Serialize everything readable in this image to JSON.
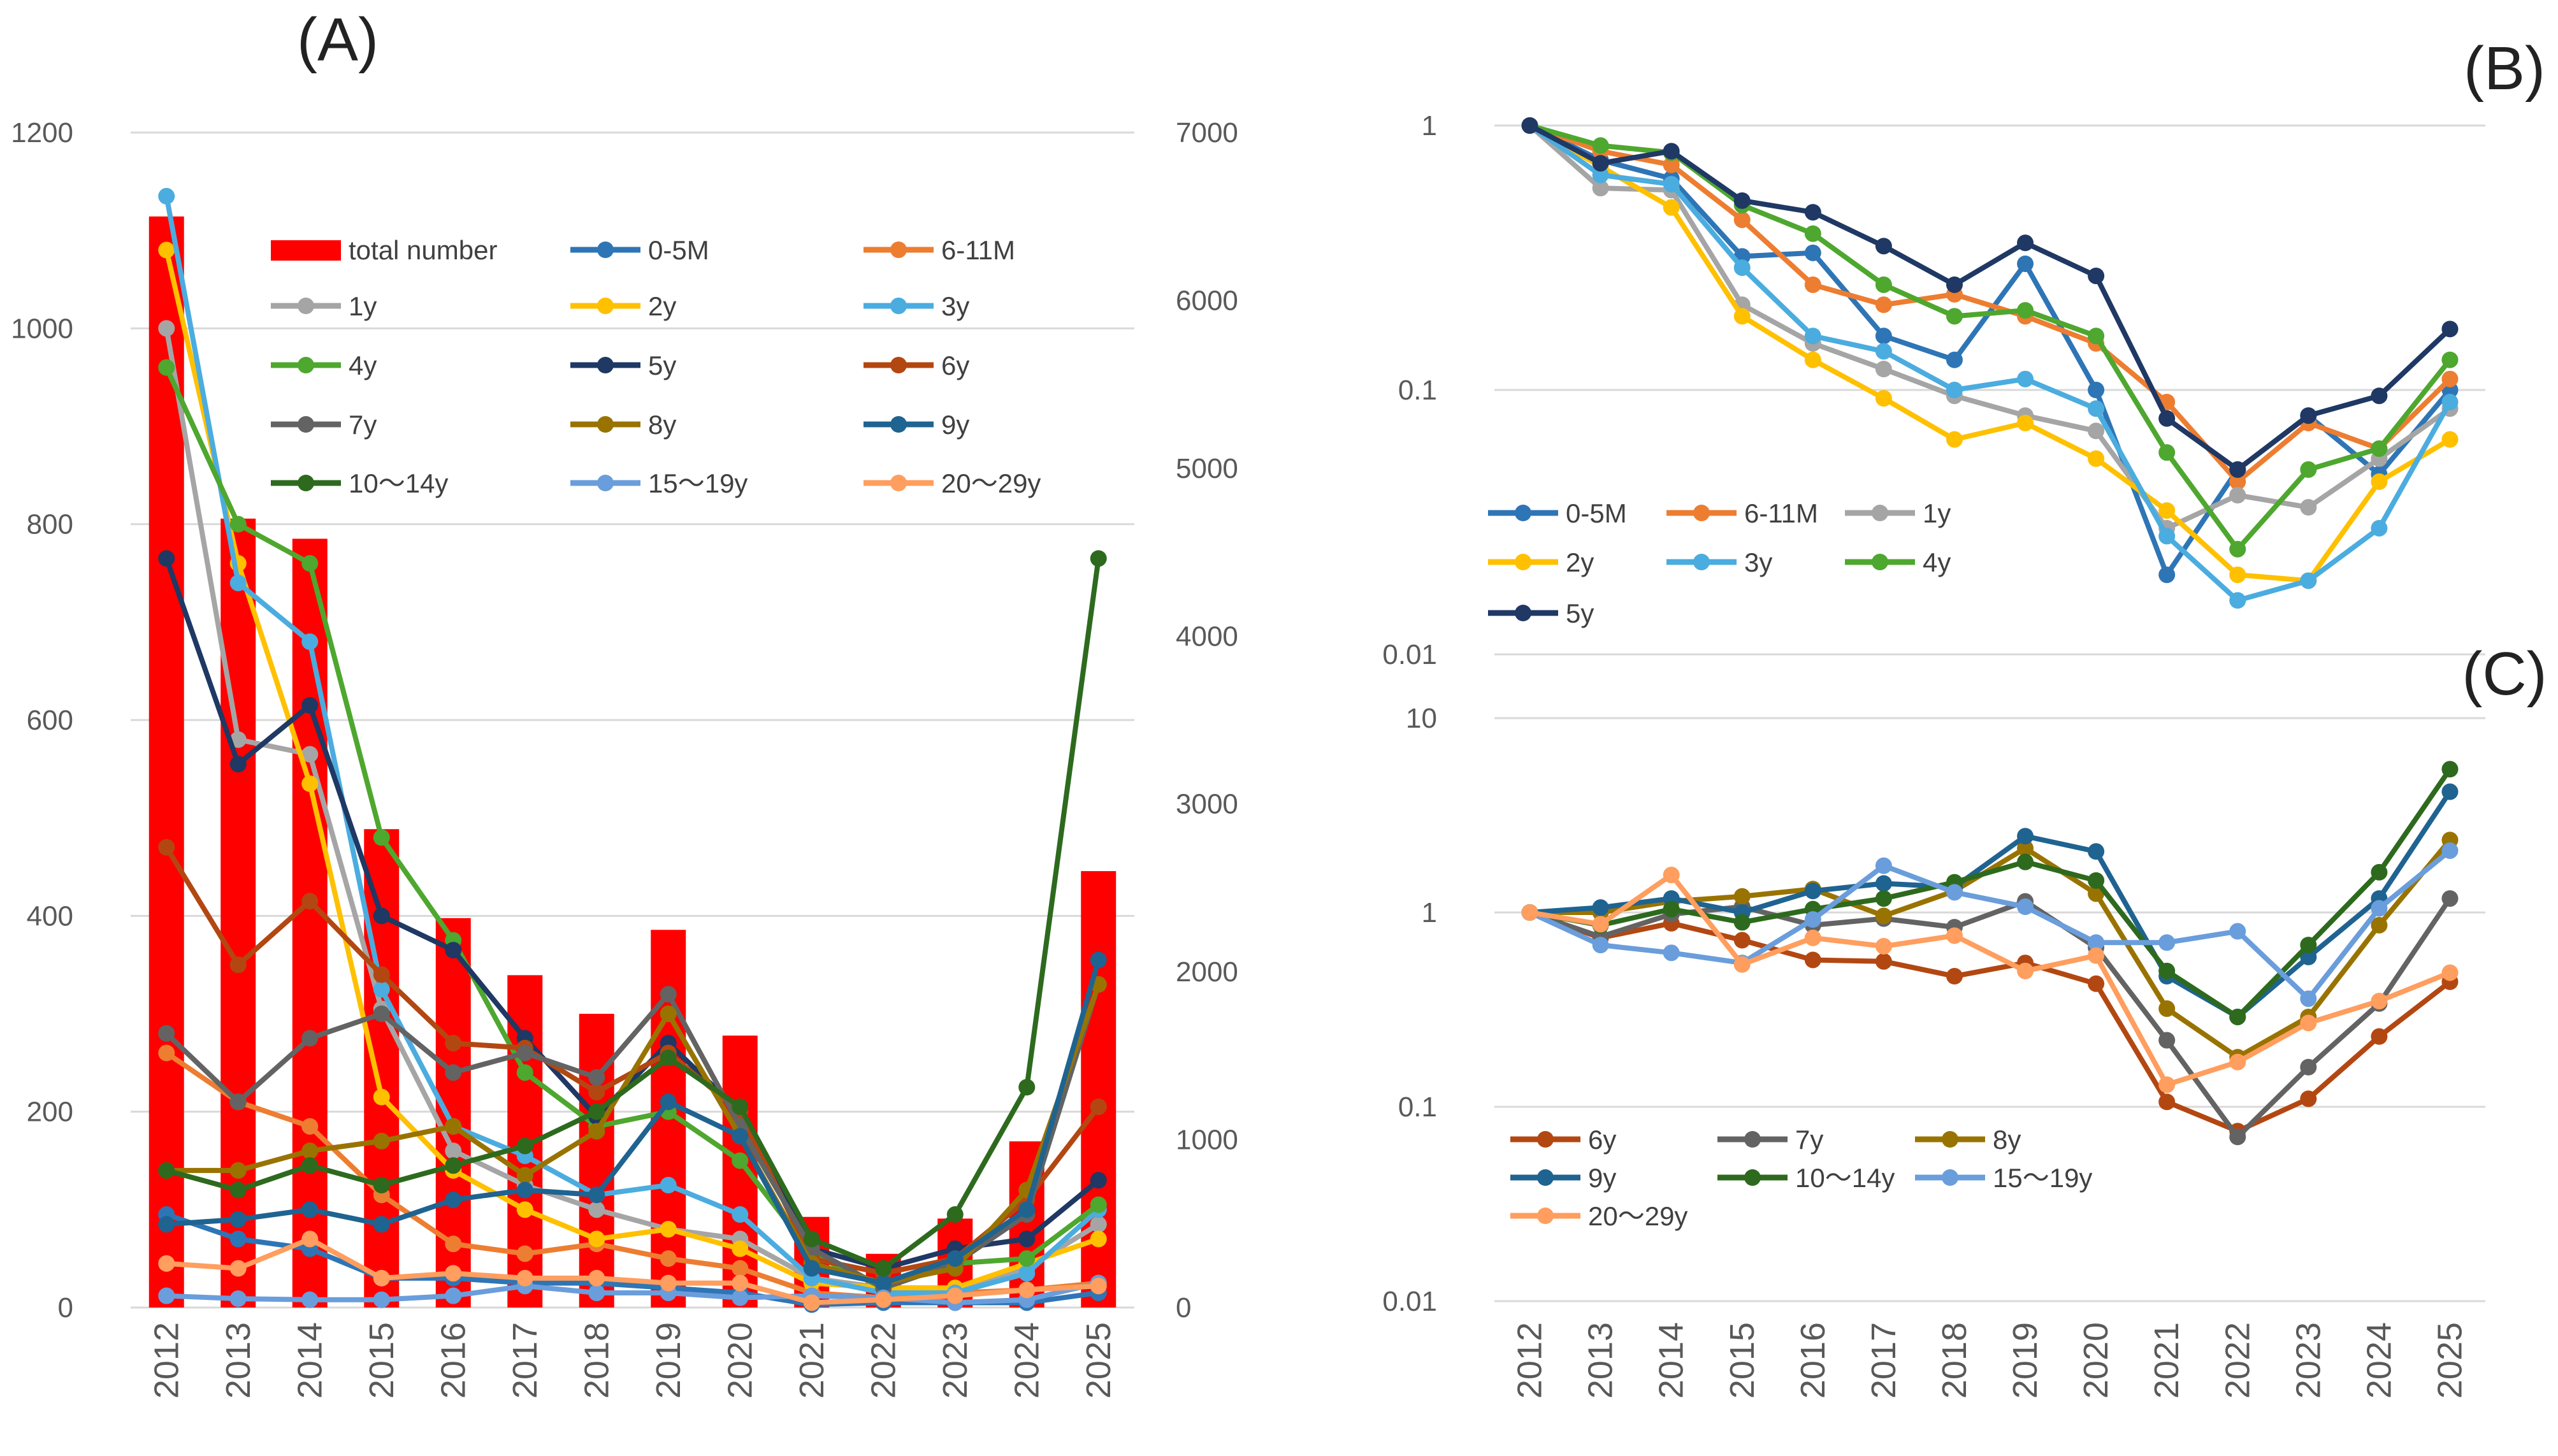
{
  "panel_labels": {
    "A": "(A)",
    "B": "(B)",
    "C": "(C)"
  },
  "chart_data": [
    {
      "id": "A",
      "type": "bar+line",
      "title": "(A)",
      "xlabel": "",
      "ylabel": "",
      "categories": [
        "2012",
        "2013",
        "2014",
        "2015",
        "2016",
        "2017",
        "2018",
        "2019",
        "2020",
        "2021",
        "2022",
        "2023",
        "2024",
        "2025"
      ],
      "ylim": [
        0,
        1200
      ],
      "y_ticks": [
        0,
        200,
        400,
        600,
        800,
        1000,
        1200
      ],
      "y2lim": [
        0,
        7000
      ],
      "y2_ticks": [
        0,
        1000,
        2000,
        3000,
        4000,
        5000,
        6000,
        7000
      ],
      "grid": true,
      "legend_location": "upper-middle",
      "bar_series": {
        "name": "total number",
        "axis": "right",
        "color": "#ff0000",
        "values": [
          6500,
          4700,
          4580,
          2850,
          2320,
          1980,
          1750,
          2250,
          1620,
          540,
          320,
          530,
          990,
          2600
        ]
      },
      "series": [
        {
          "name": "0-5M",
          "color": "#2e75b6",
          "values": [
            95,
            70,
            60,
            30,
            30,
            25,
            25,
            20,
            15,
            3,
            5,
            5,
            5,
            15
          ]
        },
        {
          "name": "6-11M",
          "color": "#ed7d31",
          "values": [
            260,
            210,
            185,
            115,
            65,
            55,
            65,
            50,
            40,
            15,
            10,
            15,
            18,
            25
          ]
        },
        {
          "name": "1y",
          "color": "#a5a5a5",
          "values": [
            1000,
            580,
            565,
            305,
            160,
            125,
            100,
            80,
            70,
            30,
            20,
            20,
            40,
            85
          ]
        },
        {
          "name": "2y",
          "color": "#ffc000",
          "values": [
            1080,
            760,
            535,
            215,
            140,
            100,
            70,
            80,
            60,
            25,
            20,
            20,
            45,
            70
          ]
        },
        {
          "name": "3y",
          "color": "#4bacdf",
          "values": [
            1135,
            740,
            680,
            325,
            185,
            155,
            115,
            125,
            95,
            30,
            15,
            15,
            35,
            100
          ]
        },
        {
          "name": "4y",
          "color": "#4ea72e",
          "values": [
            960,
            800,
            760,
            480,
            375,
            240,
            185,
            200,
            150,
            55,
            20,
            45,
            50,
            105
          ]
        },
        {
          "name": "5y",
          "color": "#1f3864",
          "values": [
            765,
            555,
            615,
            400,
            365,
            275,
            195,
            270,
            200,
            60,
            40,
            60,
            70,
            130
          ]
        },
        {
          "name": "6y",
          "color": "#b34712",
          "values": [
            470,
            350,
            415,
            340,
            270,
            265,
            220,
            260,
            200,
            50,
            35,
            50,
            110,
            205
          ]
        },
        {
          "name": "7y",
          "color": "#636363",
          "values": [
            280,
            210,
            275,
            300,
            240,
            260,
            235,
            320,
            185,
            60,
            20,
            45,
            95,
            330
          ]
        },
        {
          "name": "8y",
          "color": "#997300",
          "values": [
            140,
            140,
            160,
            170,
            185,
            135,
            180,
            300,
            175,
            45,
            25,
            40,
            120,
            330
          ]
        },
        {
          "name": "9y",
          "color": "#1f6391",
          "values": [
            85,
            90,
            100,
            85,
            110,
            120,
            115,
            210,
            175,
            40,
            25,
            50,
            100,
            355
          ]
        },
        {
          "name": "10～14y",
          "color": "#2d6a1e",
          "values": [
            140,
            120,
            145,
            125,
            145,
            165,
            200,
            255,
            205,
            70,
            40,
            95,
            225,
            765
          ]
        },
        {
          "name": "15～19y",
          "color": "#6a9ddb",
          "values": [
            12,
            9,
            8,
            8,
            12,
            22,
            15,
            15,
            10,
            12,
            10,
            5,
            8,
            25
          ]
        },
        {
          "name": "20～29y",
          "color": "#ff9e5e",
          "values": [
            45,
            40,
            70,
            30,
            35,
            30,
            30,
            25,
            25,
            5,
            8,
            12,
            18,
            22
          ]
        }
      ]
    },
    {
      "id": "B",
      "type": "line",
      "scale": "log",
      "title": "(B)",
      "categories": [
        "2012",
        "2013",
        "2014",
        "2015",
        "2016",
        "2017",
        "2018",
        "2019",
        "2020",
        "2021",
        "2022",
        "2023",
        "2024",
        "2025"
      ],
      "ylim": [
        0.01,
        1
      ],
      "y_ticks": [
        {
          "v": 1,
          "label": "1"
        },
        {
          "v": 0.1,
          "label": "0.1"
        },
        {
          "v": 0.01,
          "label": "0.01"
        }
      ],
      "grid": true,
      "legend_location": "lower-left",
      "series": [
        {
          "name": "0-5M",
          "color": "#2e75b6",
          "values": [
            1,
            0.74,
            0.63,
            0.32,
            0.33,
            0.16,
            0.13,
            0.3,
            0.1,
            0.02,
            0.05,
            0.08,
            0.048,
            0.1
          ]
        },
        {
          "name": "6-11M",
          "color": "#ed7d31",
          "values": [
            1,
            0.8,
            0.71,
            0.44,
            0.25,
            0.21,
            0.23,
            0.19,
            0.15,
            0.09,
            0.045,
            0.075,
            0.06,
            0.11
          ]
        },
        {
          "name": "1y",
          "color": "#a5a5a5",
          "values": [
            1,
            0.58,
            0.57,
            0.21,
            0.15,
            0.12,
            0.095,
            0.08,
            0.07,
            0.03,
            0.04,
            0.036,
            0.055,
            0.085
          ]
        },
        {
          "name": "2y",
          "color": "#ffc000",
          "values": [
            1,
            0.7,
            0.49,
            0.19,
            0.13,
            0.093,
            0.065,
            0.075,
            0.055,
            0.035,
            0.02,
            0.019,
            0.045,
            0.065
          ]
        },
        {
          "name": "3y",
          "color": "#4bacdf",
          "values": [
            1,
            0.65,
            0.6,
            0.29,
            0.16,
            0.14,
            0.1,
            0.11,
            0.085,
            0.028,
            0.016,
            0.019,
            0.03,
            0.09
          ]
        },
        {
          "name": "4y",
          "color": "#4ea72e",
          "values": [
            1,
            0.84,
            0.79,
            0.5,
            0.39,
            0.25,
            0.19,
            0.2,
            0.16,
            0.058,
            0.025,
            0.05,
            0.06,
            0.13
          ]
        },
        {
          "name": "5y",
          "color": "#1f3864",
          "values": [
            1,
            0.72,
            0.8,
            0.52,
            0.47,
            0.35,
            0.25,
            0.36,
            0.27,
            0.078,
            0.05,
            0.08,
            0.095,
            0.17
          ]
        }
      ]
    },
    {
      "id": "C",
      "type": "line",
      "scale": "log",
      "title": "(C)",
      "categories": [
        "2012",
        "2013",
        "2014",
        "2015",
        "2016",
        "2017",
        "2018",
        "2019",
        "2020",
        "2021",
        "2022",
        "2023",
        "2024",
        "2025"
      ],
      "ylim": [
        0.01,
        10
      ],
      "y_ticks": [
        {
          "v": 10,
          "label": "10"
        },
        {
          "v": 1,
          "label": "1"
        },
        {
          "v": 0.1,
          "label": "0.1"
        },
        {
          "v": 0.01,
          "label": "0.01"
        }
      ],
      "grid": true,
      "legend_location": "lower-left",
      "series": [
        {
          "name": "6y",
          "color": "#b34712",
          "values": [
            1,
            0.74,
            0.88,
            0.72,
            0.57,
            0.56,
            0.47,
            0.55,
            0.43,
            0.106,
            0.075,
            0.11,
            0.23,
            0.44
          ]
        },
        {
          "name": "7y",
          "color": "#636363",
          "values": [
            1,
            0.75,
            0.98,
            1.07,
            0.86,
            0.93,
            0.84,
            1.14,
            0.66,
            0.22,
            0.07,
            0.16,
            0.34,
            1.18
          ]
        },
        {
          "name": "8y",
          "color": "#997300",
          "values": [
            1,
            1.0,
            1.14,
            1.21,
            1.32,
            0.96,
            1.29,
            2.14,
            1.25,
            0.32,
            0.18,
            0.29,
            0.86,
            2.36
          ]
        },
        {
          "name": "9y",
          "color": "#1f6391",
          "values": [
            1,
            1.06,
            1.18,
            1.0,
            1.29,
            1.41,
            1.35,
            2.47,
            2.06,
            0.47,
            0.29,
            0.59,
            1.18,
            4.18
          ]
        },
        {
          "name": "10～14y",
          "color": "#2d6a1e",
          "values": [
            1,
            0.86,
            1.04,
            0.89,
            1.04,
            1.18,
            1.43,
            1.82,
            1.46,
            0.5,
            0.29,
            0.68,
            1.61,
            5.46
          ]
        },
        {
          "name": "15～19y",
          "color": "#6a9ddb",
          "values": [
            1,
            0.68,
            0.62,
            0.55,
            0.92,
            1.74,
            1.27,
            1.07,
            0.7,
            0.7,
            0.8,
            0.36,
            1.05,
            2.08
          ]
        },
        {
          "name": "20～29y",
          "color": "#ff9e5e",
          "values": [
            1,
            0.87,
            1.56,
            0.54,
            0.74,
            0.67,
            0.76,
            0.5,
            0.6,
            0.13,
            0.17,
            0.27,
            0.35,
            0.49
          ]
        }
      ]
    }
  ]
}
